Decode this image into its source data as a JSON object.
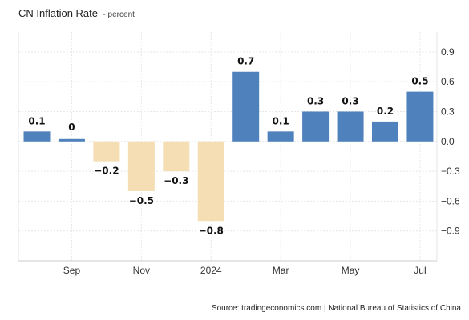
{
  "header": {
    "title": "CN Inflation Rate",
    "unit": "- percent"
  },
  "footer": {
    "source": "Source: tradingeconomics.com | National Bureau of Statistics of China"
  },
  "colors": {
    "positive": "#4f81bd",
    "negative": "#f5deb3",
    "grid": "#e6e6e6",
    "axis": "#cccccc"
  },
  "chart_data": {
    "type": "bar",
    "title": "CN Inflation Rate",
    "subtitle": "percent",
    "categories": [
      "2023-08",
      "2023-09",
      "2023-10",
      "2023-11",
      "2023-12",
      "2024-01",
      "2024-02",
      "2024-03",
      "2024-04",
      "2024-05",
      "2024-06",
      "2024-07"
    ],
    "values": [
      0.1,
      0.0,
      -0.2,
      -0.5,
      -0.3,
      -0.8,
      0.7,
      0.1,
      0.3,
      0.3,
      0.2,
      0.5
    ],
    "data_labels": [
      "0.1",
      "0",
      "−0.2",
      "−0.5",
      "−0.3",
      "−0.8",
      "0.7",
      "0.1",
      "0.3",
      "0.3",
      "0.2",
      "0.5"
    ],
    "x_tick_labels": [
      {
        "index": 1,
        "label": "Sep"
      },
      {
        "index": 3,
        "label": "Nov"
      },
      {
        "index": 5,
        "label": "2024"
      },
      {
        "index": 7,
        "label": "Mar"
      },
      {
        "index": 9,
        "label": "May"
      },
      {
        "index": 11,
        "label": "Jul"
      }
    ],
    "y_ticks": [
      0.9,
      0.6,
      0.3,
      0.0,
      -0.3,
      -0.6,
      -0.9
    ],
    "y_tick_labels": [
      "0.9",
      "0.6",
      "0.3",
      "0.0",
      "−0.3",
      "−0.6",
      "−0.9"
    ],
    "ylim": [
      -1.2,
      1.1
    ],
    "xlabel": "",
    "ylabel": "",
    "grid": true,
    "legend": "none",
    "y_axis_position": "right"
  }
}
